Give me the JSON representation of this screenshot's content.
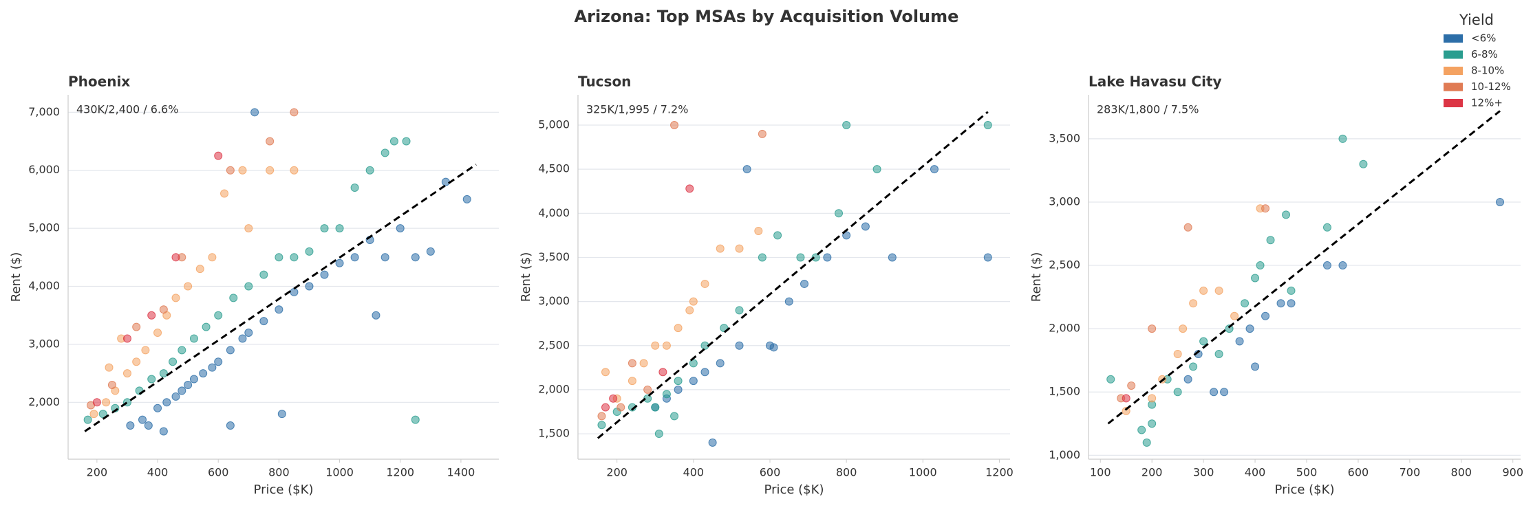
{
  "title": "Arizona: Top MSAs by Acquisition Volume",
  "legend": {
    "title": "Yield",
    "corner": "upper right"
  },
  "chart_data": [
    {
      "type": "scatter",
      "title": "Phoenix",
      "annotation": "430K/2,400 / 6.6%",
      "x_label": "Price ($K)",
      "y_label": "Rent ($)",
      "xlim": [
        105,
        1525
      ],
      "ylim": [
        1020,
        7300
      ],
      "xticks": [
        200,
        400,
        600,
        800,
        1000,
        1200,
        1400
      ],
      "yticks": [
        {
          "value": 2000,
          "label": "2,000"
        },
        {
          "value": 3000,
          "label": "3,000"
        },
        {
          "value": 4000,
          "label": "4,000"
        },
        {
          "value": 5000,
          "label": "5,000"
        },
        {
          "value": 6000,
          "label": "6,000"
        },
        {
          "value": 7000,
          "label": "7,000"
        }
      ],
      "grid": true,
      "trend": {
        "x": [
          160,
          1450
        ],
        "values": [
          1500,
          6100
        ]
      },
      "series": [
        {
          "name": "<6%",
          "color": "#2c6ea8",
          "x": [
            310,
            350,
            400,
            430,
            460,
            480,
            500,
            520,
            550,
            580,
            600,
            640,
            680,
            700,
            750,
            800,
            850,
            900,
            950,
            1000,
            1050,
            1100,
            1150,
            1200,
            1250,
            1300,
            1350,
            1420,
            1120,
            810,
            640,
            420,
            370,
            720
          ],
          "values": [
            1600,
            1700,
            1900,
            2000,
            2100,
            2200,
            2300,
            2400,
            2500,
            2600,
            2700,
            2900,
            3100,
            3200,
            3400,
            3600,
            3900,
            4000,
            4200,
            4400,
            4500,
            4800,
            4500,
            5000,
            4500,
            4600,
            5800,
            5500,
            3500,
            1800,
            1600,
            1500,
            1600,
            7000
          ]
        },
        {
          "name": "6-8%",
          "color": "#2a9d8f",
          "x": [
            170,
            220,
            260,
            300,
            340,
            380,
            420,
            450,
            480,
            520,
            560,
            600,
            650,
            700,
            750,
            800,
            850,
            900,
            950,
            1050,
            1100,
            1150,
            1180,
            1220,
            1250,
            1000
          ],
          "values": [
            1700,
            1800,
            1900,
            2000,
            2200,
            2400,
            2500,
            2700,
            2900,
            3100,
            3300,
            3500,
            3800,
            4000,
            4200,
            4500,
            4500,
            4600,
            5000,
            5700,
            6000,
            6300,
            6500,
            6500,
            1700,
            5000
          ]
        },
        {
          "name": "8-10%",
          "color": "#f4a261",
          "x": [
            190,
            230,
            260,
            300,
            330,
            360,
            400,
            430,
            460,
            500,
            540,
            580,
            620,
            700,
            770,
            850,
            680,
            240,
            280
          ],
          "values": [
            1800,
            2000,
            2200,
            2500,
            2700,
            2900,
            3200,
            3500,
            3800,
            4000,
            4300,
            4500,
            5600,
            5000,
            6000,
            6000,
            6000,
            2600,
            3100
          ]
        },
        {
          "name": "10-12%",
          "color": "#e07b54",
          "x": [
            180,
            250,
            330,
            420,
            480,
            770,
            850,
            640
          ],
          "values": [
            1950,
            2300,
            3300,
            3600,
            4500,
            6500,
            7000,
            6000
          ]
        },
        {
          "name": "12%+",
          "color": "#dc3545",
          "x": [
            200,
            300,
            380,
            460,
            600
          ],
          "values": [
            2000,
            3100,
            3500,
            4500,
            6250
          ]
        }
      ]
    },
    {
      "type": "scatter",
      "title": "Tucson",
      "annotation": "325K/1,995 / 7.2%",
      "x_label": "Price ($K)",
      "y_label": "Rent ($)",
      "xlim": [
        98,
        1228
      ],
      "ylim": [
        1212,
        5343
      ],
      "xticks": [
        200,
        400,
        600,
        800,
        1000,
        1200
      ],
      "yticks": [
        {
          "value": 1500,
          "label": "1,500"
        },
        {
          "value": 2000,
          "label": "2,000"
        },
        {
          "value": 2500,
          "label": "2,500"
        },
        {
          "value": 3000,
          "label": "3,000"
        },
        {
          "value": 3500,
          "label": "3,500"
        },
        {
          "value": 4000,
          "label": "4,000"
        },
        {
          "value": 4500,
          "label": "4,500"
        },
        {
          "value": 5000,
          "label": "5,000"
        }
      ],
      "grid": true,
      "trend": {
        "x": [
          150,
          1170
        ],
        "values": [
          1450,
          5150
        ]
      },
      "series": [
        {
          "name": "<6%",
          "color": "#2c6ea8",
          "x": [
            300,
            330,
            360,
            400,
            430,
            470,
            520,
            540,
            600,
            650,
            690,
            750,
            800,
            850,
            920,
            1030,
            1170,
            450,
            610
          ],
          "values": [
            1800,
            1900,
            2000,
            2100,
            2200,
            2300,
            2500,
            4500,
            2500,
            3000,
            3200,
            3500,
            3750,
            3850,
            3500,
            4500,
            3500,
            1400,
            2480
          ]
        },
        {
          "name": "6-8%",
          "color": "#2a9d8f",
          "x": [
            160,
            200,
            240,
            280,
            300,
            330,
            360,
            400,
            430,
            480,
            520,
            580,
            620,
            680,
            720,
            780,
            800,
            880,
            1170,
            310,
            350
          ],
          "values": [
            1600,
            1750,
            1800,
            1900,
            1800,
            1950,
            2100,
            2300,
            2500,
            2700,
            2900,
            3500,
            3750,
            3500,
            3500,
            4000,
            5000,
            4500,
            5000,
            1500,
            1700
          ]
        },
        {
          "name": "8-10%",
          "color": "#f4a261",
          "x": [
            170,
            200,
            240,
            270,
            300,
            330,
            360,
            400,
            430,
            470,
            520,
            570,
            390
          ],
          "values": [
            2200,
            1900,
            2100,
            2300,
            2500,
            2500,
            2700,
            3000,
            3200,
            3600,
            3600,
            3800,
            2900
          ]
        },
        {
          "name": "10-12%",
          "color": "#e07b54",
          "x": [
            160,
            210,
            280,
            350,
            580,
            240
          ],
          "values": [
            1700,
            1800,
            2000,
            5000,
            4900,
            2300
          ]
        },
        {
          "name": "12%+",
          "color": "#dc3545",
          "x": [
            170,
            190,
            320,
            390
          ],
          "values": [
            1800,
            1900,
            2200,
            4280
          ]
        }
      ]
    },
    {
      "type": "scatter",
      "title": "Lake Havasu City",
      "annotation": "283K/1,800 / 7.5%",
      "x_label": "Price ($K)",
      "y_label": "Rent ($)",
      "xlim": [
        77,
        915
      ],
      "ylim": [
        969,
        3847
      ],
      "xticks": [
        100,
        200,
        300,
        400,
        500,
        600,
        700,
        800,
        900
      ],
      "yticks": [
        {
          "value": 1000,
          "label": "1,000"
        },
        {
          "value": 1500,
          "label": "1,500"
        },
        {
          "value": 2000,
          "label": "2,000"
        },
        {
          "value": 2500,
          "label": "2,500"
        },
        {
          "value": 3000,
          "label": "3,000"
        },
        {
          "value": 3500,
          "label": "3,500"
        }
      ],
      "grid": true,
      "trend": {
        "x": [
          115,
          875
        ],
        "values": [
          1250,
          3720
        ]
      },
      "series": [
        {
          "name": "<6%",
          "color": "#2c6ea8",
          "x": [
            270,
            290,
            320,
            340,
            370,
            390,
            420,
            450,
            470,
            540,
            570,
            875,
            400
          ],
          "values": [
            1600,
            1800,
            1500,
            1500,
            1900,
            2000,
            2100,
            2200,
            2200,
            2500,
            2500,
            3000,
            1700
          ]
        },
        {
          "name": "6-8%",
          "color": "#2a9d8f",
          "x": [
            120,
            180,
            190,
            200,
            230,
            250,
            280,
            300,
            330,
            350,
            380,
            400,
            410,
            430,
            460,
            470,
            540,
            570,
            610,
            200
          ],
          "values": [
            1600,
            1200,
            1100,
            1400,
            1600,
            1500,
            1700,
            1900,
            1800,
            2000,
            2200,
            2400,
            2500,
            2700,
            2900,
            2300,
            2800,
            3500,
            3300,
            1250
          ]
        },
        {
          "name": "8-10%",
          "color": "#f4a261",
          "x": [
            150,
            200,
            220,
            250,
            280,
            300,
            330,
            360,
            410,
            260
          ],
          "values": [
            1350,
            1450,
            1600,
            1800,
            2200,
            2300,
            2300,
            2100,
            2950,
            2000
          ]
        },
        {
          "name": "10-12%",
          "color": "#e07b54",
          "x": [
            140,
            160,
            200,
            270,
            420
          ],
          "values": [
            1450,
            1550,
            2000,
            2800,
            2950
          ]
        },
        {
          "name": "12%+",
          "color": "#dc3545",
          "x": [
            150
          ],
          "values": [
            1450
          ]
        }
      ]
    }
  ]
}
